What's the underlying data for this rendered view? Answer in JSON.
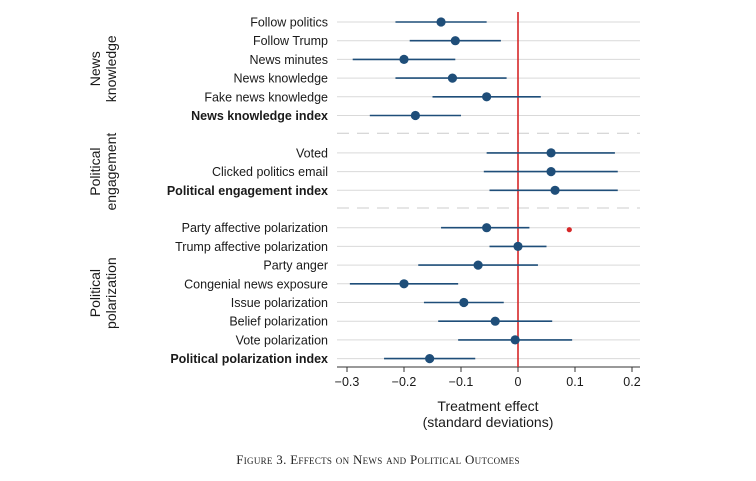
{
  "chart_data": {
    "type": "scatter",
    "subtype": "coefficient-plot",
    "xlabel": [
      "Treatment effect",
      "(standard deviations)"
    ],
    "xlim": [
      -0.32,
      0.22
    ],
    "xticks": [
      -0.3,
      -0.2,
      -0.1,
      0,
      0.1,
      0.2
    ],
    "xtick_labels": [
      "−0.3",
      "−0.2",
      "−0.1",
      "0",
      "0.1",
      "0.2"
    ],
    "reference_line_x": 0,
    "reference_line_color": "#d62728",
    "marker_color": "#1f4e79",
    "grid": true,
    "groups": [
      {
        "label": [
          "News",
          "knowledge"
        ],
        "items": [
          {
            "name": "Follow politics",
            "estimate": -0.135,
            "ci": [
              -0.215,
              -0.055
            ],
            "bold": false
          },
          {
            "name": "Follow Trump",
            "estimate": -0.11,
            "ci": [
              -0.19,
              -0.03
            ],
            "bold": false
          },
          {
            "name": "News minutes",
            "estimate": -0.2,
            "ci": [
              -0.29,
              -0.11
            ],
            "bold": false
          },
          {
            "name": "News knowledge",
            "estimate": -0.115,
            "ci": [
              -0.215,
              -0.02
            ],
            "bold": false
          },
          {
            "name": "Fake news knowledge",
            "estimate": -0.055,
            "ci": [
              -0.15,
              0.04
            ],
            "bold": false
          },
          {
            "name": "News knowledge index",
            "estimate": -0.18,
            "ci": [
              -0.26,
              -0.1
            ],
            "bold": true
          }
        ]
      },
      {
        "label": [
          "Political",
          "engagement"
        ],
        "items": [
          {
            "name": "Voted",
            "estimate": 0.058,
            "ci": [
              -0.055,
              0.17
            ],
            "bold": false
          },
          {
            "name": "Clicked politics email",
            "estimate": 0.058,
            "ci": [
              -0.06,
              0.175
            ],
            "bold": false
          },
          {
            "name": "Political engagement index",
            "estimate": 0.065,
            "ci": [
              -0.05,
              0.175
            ],
            "bold": true
          }
        ]
      },
      {
        "label": [
          "Political",
          "polarization"
        ],
        "items": [
          {
            "name": "Party affective polarization",
            "estimate": -0.055,
            "ci": [
              -0.135,
              0.02
            ],
            "bold": false,
            "extra_point": 0.09
          },
          {
            "name": "Trump affective polarization",
            "estimate": 0.0,
            "ci": [
              -0.05,
              0.05
            ],
            "bold": false
          },
          {
            "name": "Party anger",
            "estimate": -0.07,
            "ci": [
              -0.175,
              0.035
            ],
            "bold": false
          },
          {
            "name": "Congenial news exposure",
            "estimate": -0.2,
            "ci": [
              -0.295,
              -0.105
            ],
            "bold": false
          },
          {
            "name": "Issue polarization",
            "estimate": -0.095,
            "ci": [
              -0.165,
              -0.025
            ],
            "bold": false
          },
          {
            "name": "Belief polarization",
            "estimate": -0.04,
            "ci": [
              -0.14,
              0.06
            ],
            "bold": false
          },
          {
            "name": "Vote polarization",
            "estimate": -0.005,
            "ci": [
              -0.105,
              0.095
            ],
            "bold": false
          },
          {
            "name": "Political polarization index",
            "estimate": -0.155,
            "ci": [
              -0.235,
              -0.075
            ],
            "bold": true
          }
        ]
      }
    ]
  },
  "caption": {
    "prefix": "Figure 3.",
    "text": "Effects on News and Political Outcomes"
  }
}
